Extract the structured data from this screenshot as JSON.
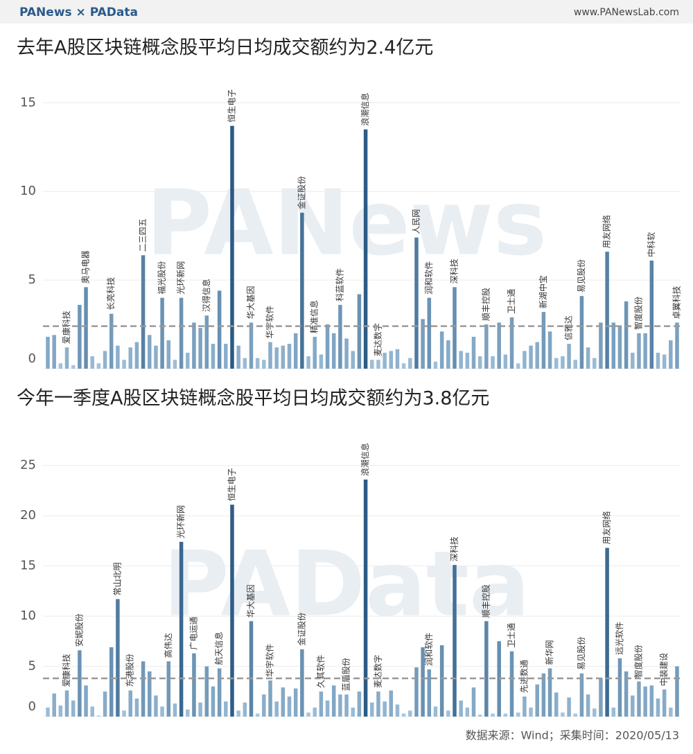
{
  "header": {
    "logo": "PANews × PAData",
    "url": "www.PANewsLab.com"
  },
  "footer": "数据来源：Wind；采集时间：2020/05/13",
  "chart_data": [
    {
      "type": "bar",
      "title": "去年A股区块链概念股平均日均成交额约为2.4亿元",
      "watermark": "PANews",
      "categories": [
        null,
        null,
        null,
        "爱康科技",
        null,
        null,
        "奥马电器",
        null,
        null,
        null,
        "长亮科技",
        null,
        null,
        null,
        null,
        "二三四五",
        null,
        null,
        "福光股份",
        null,
        null,
        "光环新网",
        null,
        null,
        null,
        "汉得信息",
        null,
        null,
        null,
        "恒生电子",
        null,
        null,
        "华大基因",
        null,
        null,
        "华宇软件",
        null,
        null,
        null,
        null,
        "金证股份",
        null,
        "精准信息",
        null,
        null,
        null,
        "科蓝软件",
        null,
        null,
        null,
        "浪潮信息",
        null,
        "麦达数字",
        null,
        null,
        null,
        null,
        null,
        "人民网",
        null,
        "润和软件",
        null,
        null,
        null,
        "深科技",
        null,
        null,
        null,
        null,
        "顺丰控股",
        null,
        null,
        null,
        "卫士通",
        null,
        null,
        null,
        null,
        "新湖中宝",
        null,
        null,
        null,
        "信雅达",
        null,
        "易见股份",
        null,
        null,
        null,
        "用友网络",
        null,
        null,
        null,
        null,
        "智度股份",
        null,
        "中科软",
        null,
        null,
        null,
        "卓翼科技"
      ],
      "values": [
        1.8,
        1.9,
        0.3,
        1.2,
        0.2,
        3.6,
        4.6,
        0.7,
        0.3,
        1.0,
        3.1,
        1.3,
        0.5,
        1.2,
        1.5,
        6.4,
        1.9,
        1.3,
        4.0,
        1.6,
        0.5,
        4.0,
        0.9,
        2.6,
        2.3,
        3.0,
        1.4,
        4.4,
        1.4,
        13.7,
        1.3,
        0.6,
        2.6,
        0.6,
        0.5,
        1.5,
        1.2,
        1.3,
        1.4,
        2.0,
        8.8,
        0.7,
        1.8,
        0.8,
        2.5,
        2.0,
        3.6,
        1.7,
        1.0,
        4.2,
        13.5,
        0.5,
        0.5,
        0.9,
        1.0,
        1.1,
        0.3,
        0.6,
        7.4,
        2.8,
        4.0,
        0.4,
        2.1,
        1.6,
        4.6,
        1.0,
        0.9,
        1.8,
        0.7,
        2.5,
        0.7,
        2.6,
        0.8,
        2.9,
        0.3,
        1.0,
        1.3,
        1.5,
        3.2,
        2.1,
        0.6,
        0.7,
        1.4,
        0.5,
        4.1,
        1.2,
        0.6,
        2.6,
        6.6,
        2.6,
        2.4,
        3.8,
        0.9,
        2.0,
        2.0,
        6.1,
        0.9,
        0.8,
        1.6,
        2.6
      ],
      "reference_line": 2.4,
      "color_range": [
        "#b7d5ea",
        "#2b5b86"
      ],
      "line_color": "#999999",
      "ylim": [
        0,
        16.5
      ],
      "yticks": [
        0,
        5,
        10,
        15
      ],
      "grid": true
    },
    {
      "type": "bar",
      "title": "今年一季度A股区块链概念股平均日均成交额约为3.8亿元",
      "watermark": "PAData",
      "categories": [
        null,
        null,
        null,
        "爱康科技",
        null,
        "安妮股份",
        null,
        null,
        null,
        null,
        null,
        "常山北明",
        null,
        "东港股份",
        null,
        null,
        null,
        null,
        null,
        "高伟达",
        null,
        "光环新网",
        null,
        "广电运通",
        null,
        null,
        null,
        "航天信息",
        null,
        "恒生电子",
        null,
        null,
        "华大基因",
        null,
        null,
        "华宇软件",
        null,
        null,
        null,
        null,
        "金证股份",
        null,
        null,
        "久其软件",
        null,
        null,
        null,
        "蓝盾股份",
        null,
        null,
        "浪潮信息",
        null,
        "麦达数字",
        null,
        null,
        null,
        null,
        null,
        null,
        null,
        "润和软件",
        null,
        null,
        null,
        "深科技",
        null,
        null,
        null,
        null,
        "顺丰控股",
        null,
        null,
        null,
        "卫士通",
        null,
        "先进数通",
        null,
        null,
        null,
        "新华网",
        null,
        null,
        null,
        null,
        "易见股份",
        null,
        null,
        null,
        "用友网络",
        null,
        "远光软件",
        null,
        null,
        "智度股份",
        null,
        null,
        null,
        "中装建设",
        null,
        null
      ],
      "values": [
        0.9,
        2.3,
        1.1,
        2.6,
        1.6,
        6.6,
        3.1,
        1.0,
        0.1,
        2.5,
        6.9,
        11.7,
        0.6,
        2.6,
        1.8,
        5.5,
        4.5,
        2.1,
        1.0,
        5.5,
        1.3,
        17.4,
        0.7,
        6.3,
        1.4,
        5.0,
        3.0,
        4.8,
        1.5,
        21.1,
        0.6,
        1.4,
        9.5,
        0.3,
        2.2,
        3.6,
        1.5,
        2.9,
        2.0,
        2.8,
        6.7,
        0.4,
        0.9,
        2.5,
        1.6,
        3.1,
        2.2,
        2.2,
        0.9,
        2.5,
        23.6,
        1.4,
        2.5,
        1.5,
        2.6,
        1.2,
        0.3,
        0.6,
        4.9,
        6.9,
        4.7,
        1.0,
        7.1,
        0.6,
        15.1,
        1.6,
        0.9,
        2.9,
        0.2,
        9.5,
        0.3,
        7.5,
        0.3,
        6.5,
        0.4,
        2.0,
        0.9,
        3.2,
        4.3,
        4.8,
        2.4,
        0.4,
        1.9,
        0.3,
        4.3,
        2.2,
        0.8,
        3.8,
        16.8,
        0.9,
        5.8,
        4.5,
        2.1,
        3.5,
        3.0,
        3.1,
        1.8,
        2.7,
        0.9,
        5.0
      ],
      "reference_line": 3.8,
      "color_range": [
        "#b7d5ea",
        "#2b5b86"
      ],
      "line_color": "#999999",
      "ylim": [
        0,
        26.5
      ],
      "yticks": [
        0,
        5,
        10,
        15,
        20,
        25
      ],
      "grid": true
    }
  ]
}
